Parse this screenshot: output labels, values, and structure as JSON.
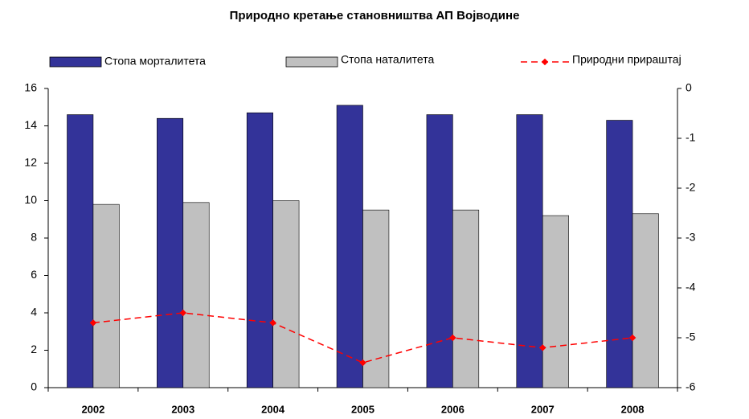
{
  "chart_data": {
    "type": "bar",
    "title": "Природно кретање становништва АП Војводине",
    "categories": [
      "2002",
      "2003",
      "2004",
      "2005",
      "2006",
      "2007",
      "2008"
    ],
    "series": [
      {
        "name": "Стопа морталитета",
        "color": "#333399",
        "values": [
          14.6,
          14.4,
          14.7,
          15.1,
          14.6,
          14.6,
          14.3
        ]
      },
      {
        "name": "Стопа наталитета",
        "color": "#c0c0c0",
        "values": [
          9.8,
          9.9,
          10.0,
          9.5,
          9.5,
          9.2,
          9.3
        ]
      },
      {
        "name": "Природни прираштај",
        "color": "#ff0000",
        "type": "line",
        "axis": "y2",
        "values": [
          -4.7,
          -4.5,
          -4.7,
          -5.5,
          -5.0,
          -5.2,
          -5.0
        ]
      }
    ],
    "ylim": [
      0,
      16
    ],
    "yticks": [
      0,
      2,
      4,
      6,
      8,
      10,
      12,
      14,
      16
    ],
    "y2lim": [
      -6,
      0
    ],
    "y2ticks": [
      -6,
      -5,
      -4,
      -3,
      -2,
      -1,
      0
    ],
    "grid": false,
    "legend": "top"
  }
}
